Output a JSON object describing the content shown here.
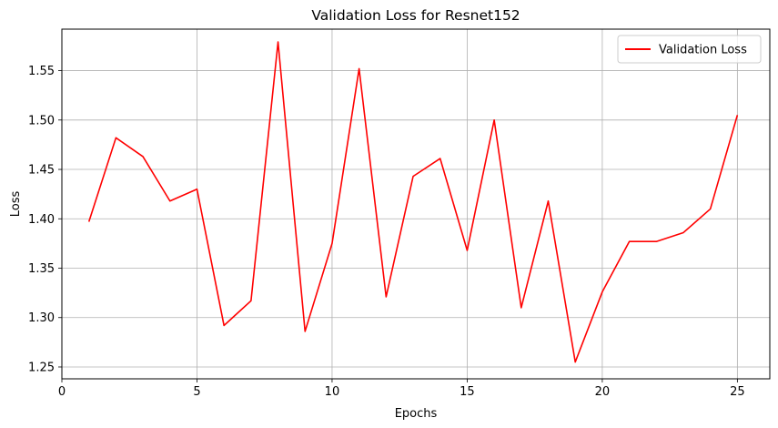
{
  "chart_data": {
    "type": "line",
    "title": "Validation Loss for Resnet152",
    "xlabel": "Epochs",
    "ylabel": "Loss",
    "xlim": [
      0,
      26.2
    ],
    "ylim": [
      1.238,
      1.592
    ],
    "xticks": [
      0,
      5,
      10,
      15,
      20,
      25
    ],
    "yticks": [
      1.25,
      1.3,
      1.35,
      1.4,
      1.45,
      1.5,
      1.55
    ],
    "xtick_labels": [
      "0",
      "5",
      "10",
      "15",
      "20",
      "25"
    ],
    "ytick_labels": [
      "1.25",
      "1.30",
      "1.35",
      "1.40",
      "1.45",
      "1.50",
      "1.55"
    ],
    "grid": true,
    "legend_position": "top-right",
    "series": [
      {
        "name": "Validation Loss",
        "color": "#ff0000",
        "x": [
          1,
          2,
          3,
          4,
          5,
          6,
          7,
          8,
          9,
          10,
          11,
          12,
          13,
          14,
          15,
          16,
          17,
          18,
          19,
          20,
          21,
          22,
          23,
          24,
          25
        ],
        "y": [
          1.397,
          1.482,
          1.463,
          1.418,
          1.43,
          1.292,
          1.317,
          1.579,
          1.286,
          1.375,
          1.552,
          1.321,
          1.443,
          1.461,
          1.368,
          1.5,
          1.31,
          1.418,
          1.255,
          1.326,
          1.377,
          1.377,
          1.386,
          1.41,
          1.505
        ]
      }
    ]
  }
}
